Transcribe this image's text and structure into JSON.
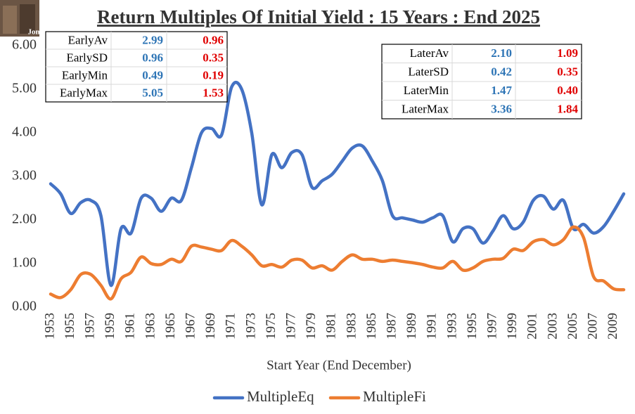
{
  "chart_data": {
    "type": "line",
    "title": "Return Multiples Of Initial Yield : 15 Years : End 2025",
    "logo_text": "Jon",
    "x_label": "Start Year (End December)",
    "x": [
      1953,
      1954,
      1955,
      1956,
      1957,
      1958,
      1959,
      1960,
      1961,
      1962,
      1963,
      1964,
      1965,
      1966,
      1967,
      1968,
      1969,
      1970,
      1971,
      1972,
      1973,
      1974,
      1975,
      1976,
      1977,
      1978,
      1979,
      1980,
      1981,
      1982,
      1983,
      1984,
      1985,
      1986,
      1987,
      1988,
      1989,
      1990,
      1991,
      1992,
      1993,
      1994,
      1995,
      1996,
      1997,
      1998,
      1999,
      2000,
      2001,
      2002,
      2003,
      2004,
      2005,
      2006,
      2007,
      2008,
      2009,
      2010
    ],
    "xlim": [
      1953,
      2010
    ],
    "xticks": [
      1953,
      1955,
      1957,
      1959,
      1961,
      1963,
      1965,
      1967,
      1969,
      1971,
      1973,
      1975,
      1977,
      1979,
      1981,
      1983,
      1985,
      1987,
      1989,
      1991,
      1993,
      1995,
      1997,
      1999,
      2001,
      2003,
      2005,
      2007,
      2009
    ],
    "ylim": [
      0,
      6
    ],
    "yticks": [
      {
        "value": 0,
        "label": "0.00"
      },
      {
        "value": 1,
        "label": "1.00"
      },
      {
        "value": 2,
        "label": "2.00"
      },
      {
        "value": 3,
        "label": "3.00"
      },
      {
        "value": 4,
        "label": "4.00"
      },
      {
        "value": 5,
        "label": "5.00"
      },
      {
        "value": 6,
        "label": "6.00"
      }
    ],
    "grid": false,
    "legend": "bottom",
    "series": [
      {
        "name": "MultipleEq",
        "color": "#4472c4",
        "values": [
          2.83,
          2.6,
          2.15,
          2.4,
          2.45,
          2.1,
          0.5,
          1.8,
          1.7,
          2.5,
          2.5,
          2.2,
          2.5,
          2.45,
          3.2,
          4.0,
          4.1,
          3.95,
          5.05,
          5.0,
          4.0,
          2.35,
          3.5,
          3.2,
          3.55,
          3.5,
          2.75,
          2.9,
          3.05,
          3.35,
          3.65,
          3.7,
          3.35,
          2.9,
          2.1,
          2.05,
          2.0,
          1.95,
          2.05,
          2.1,
          1.5,
          1.8,
          1.8,
          1.47,
          1.75,
          2.1,
          1.8,
          1.95,
          2.45,
          2.55,
          2.25,
          2.45,
          1.8,
          1.9,
          1.7,
          1.85,
          2.2,
          2.6
        ]
      },
      {
        "name": "MultipleFi",
        "color": "#ed7d31",
        "values": [
          0.3,
          0.22,
          0.4,
          0.75,
          0.75,
          0.5,
          0.19,
          0.65,
          0.8,
          1.15,
          1.0,
          0.98,
          1.1,
          1.05,
          1.4,
          1.38,
          1.33,
          1.3,
          1.53,
          1.4,
          1.2,
          0.95,
          0.98,
          0.92,
          1.08,
          1.08,
          0.9,
          0.95,
          0.85,
          1.05,
          1.2,
          1.1,
          1.1,
          1.05,
          1.08,
          1.05,
          1.02,
          0.98,
          0.92,
          0.9,
          1.05,
          0.85,
          0.9,
          1.05,
          1.1,
          1.12,
          1.33,
          1.3,
          1.5,
          1.55,
          1.43,
          1.55,
          1.84,
          1.6,
          0.7,
          0.6,
          0.42,
          0.4
        ]
      }
    ],
    "tables": [
      {
        "rows": [
          [
            "EarlyAv",
            "2.99",
            "0.96"
          ],
          [
            "EarlySD",
            "0.96",
            "0.35"
          ],
          [
            "EarlyMin",
            "0.49",
            "0.19"
          ],
          [
            "EarlyMax",
            "5.05",
            "1.53"
          ]
        ],
        "colors": [
          "#000000",
          "#2e75b6",
          "#e00000"
        ]
      },
      {
        "rows": [
          [
            "LaterAv",
            "2.10",
            "1.09"
          ],
          [
            "LaterSD",
            "0.42",
            "0.35"
          ],
          [
            "LaterMin",
            "1.47",
            "0.40"
          ],
          [
            "LaterMax",
            "3.36",
            "1.84"
          ]
        ],
        "colors": [
          "#000000",
          "#2e75b6",
          "#e00000"
        ]
      }
    ]
  }
}
